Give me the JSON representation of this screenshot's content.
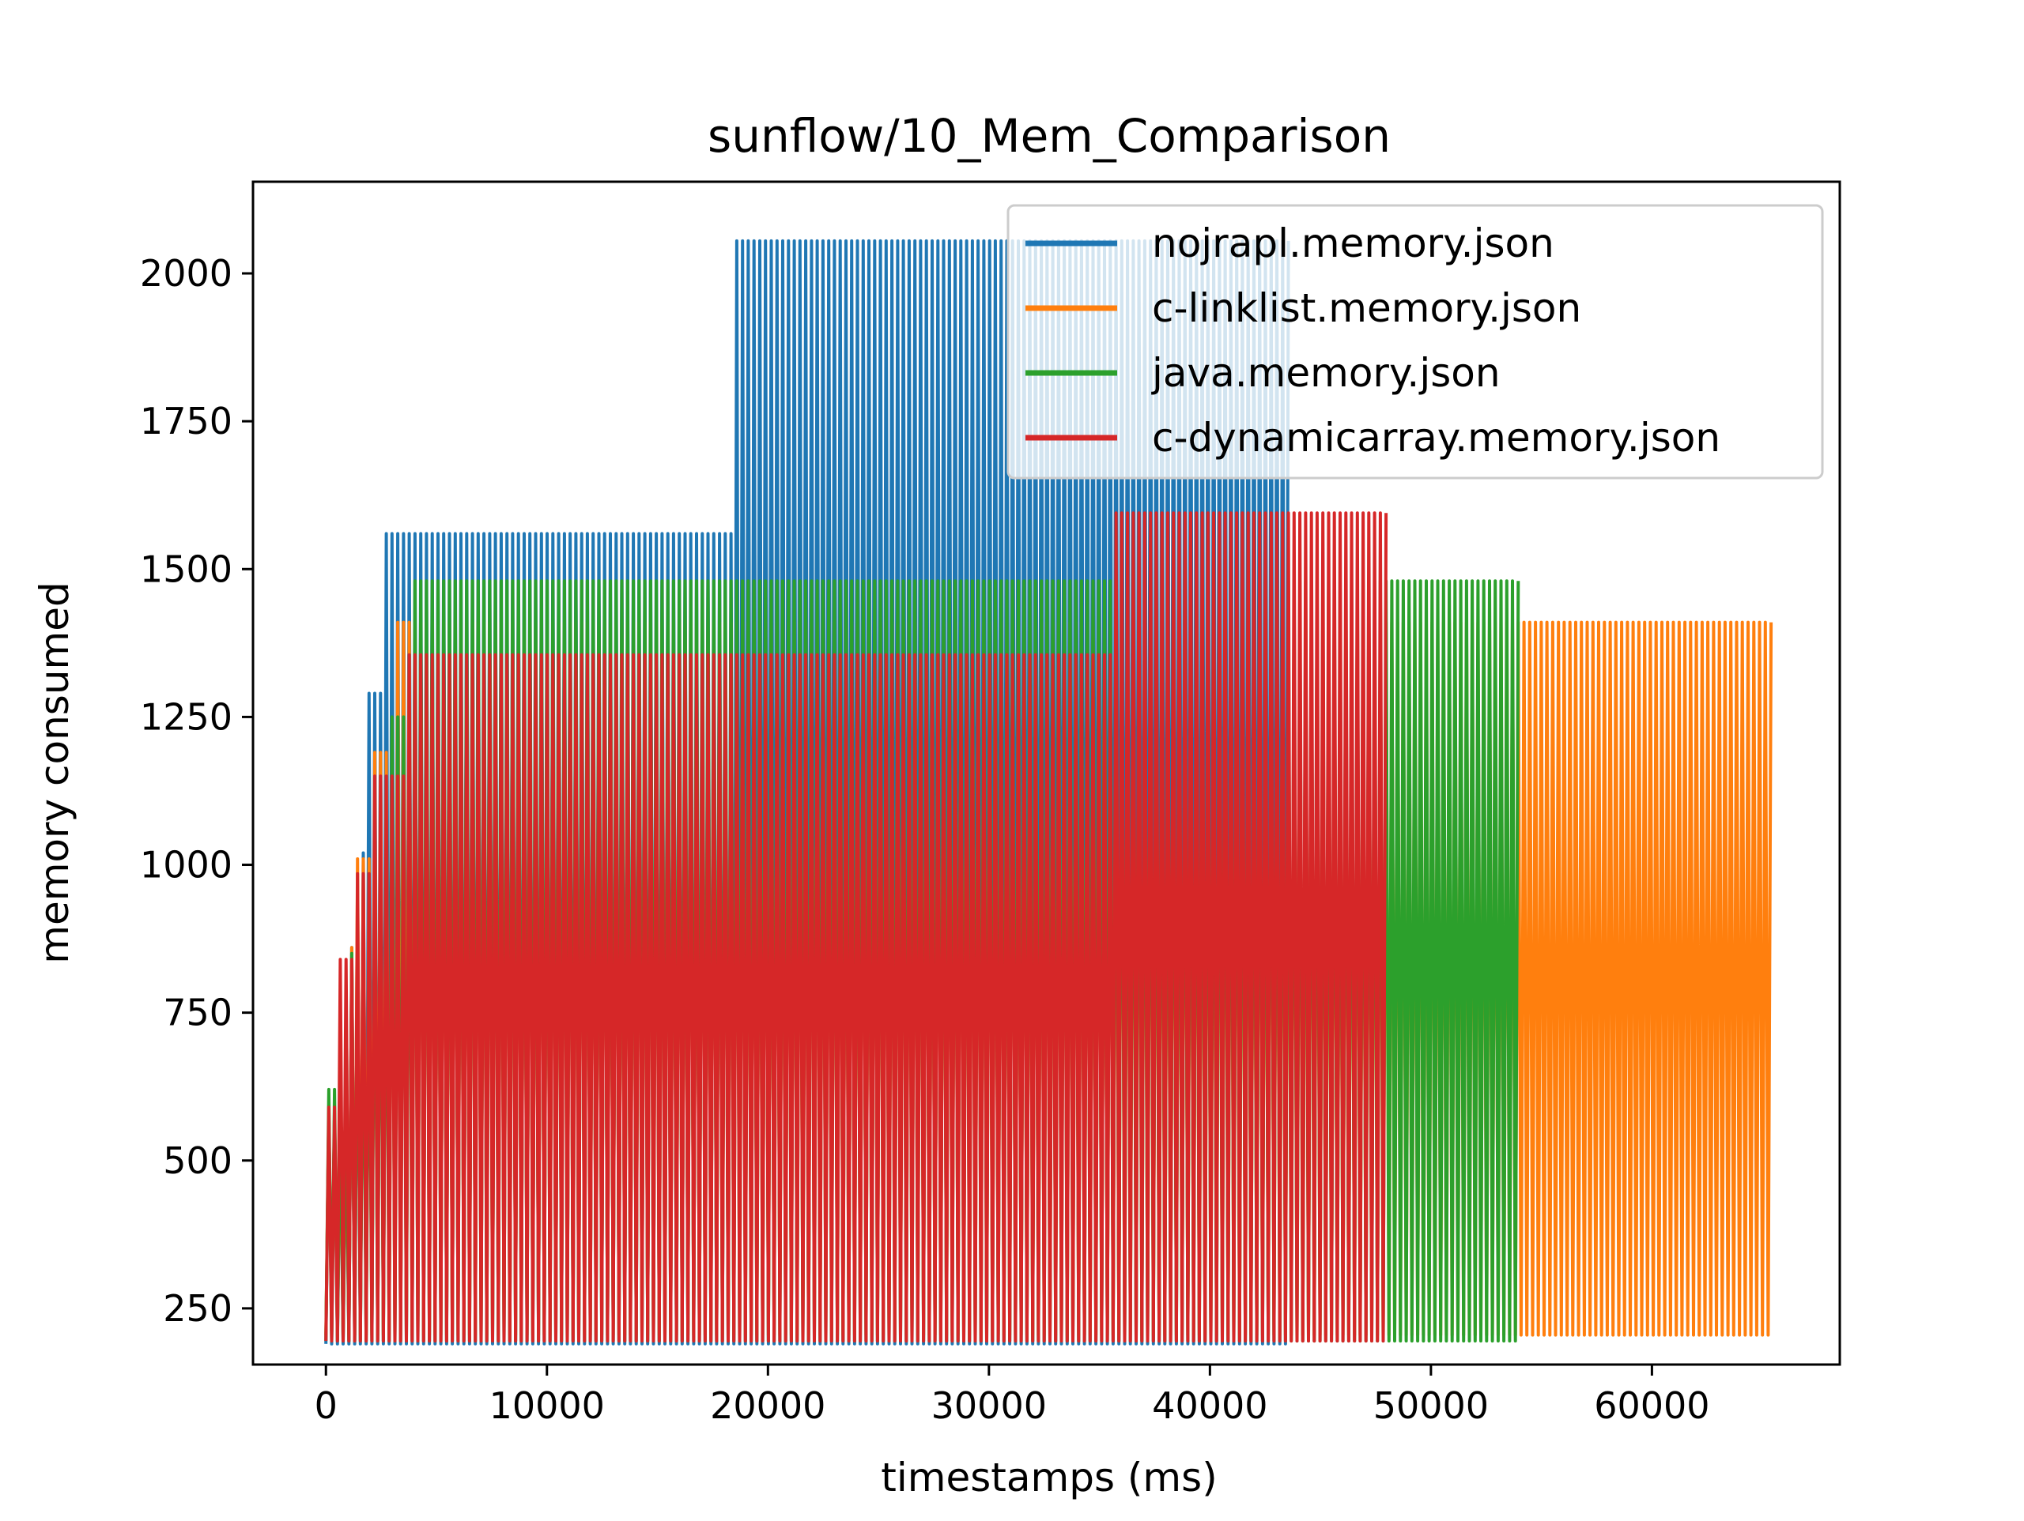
{
  "chart_data": {
    "type": "line",
    "title": "sunflow/10_Mem_Comparison",
    "xlabel": "timestamps (ms)",
    "ylabel": "memory consumed",
    "xlim": [
      -3300,
      68500
    ],
    "ylim": [
      155,
      2155
    ],
    "xticks": [
      0,
      10000,
      20000,
      30000,
      40000,
      50000,
      60000
    ],
    "yticks": [
      250,
      500,
      750,
      1000,
      1250,
      1500,
      1750,
      2000
    ],
    "grid": false,
    "legend_position": "top-right",
    "series": [
      {
        "name": "nojrapl.memory.json",
        "color": "#1f77b4",
        "end_x": 43600,
        "period_ms": 260,
        "troughs": 190,
        "peak_steps": [
          [
            0,
            580
          ],
          [
            1000,
            860
          ],
          [
            1400,
            1020
          ],
          [
            1600,
            1290
          ],
          [
            2400,
            1560
          ],
          [
            18300,
            2055
          ],
          [
            43600,
            2055
          ]
        ]
      },
      {
        "name": "c-linklist.memory.json",
        "color": "#ff7f0e",
        "end_x": 65300,
        "period_ms": 260,
        "troughs": 205,
        "peak_steps": [
          [
            0,
            580
          ],
          [
            800,
            860
          ],
          [
            1300,
            1010
          ],
          [
            2000,
            1190
          ],
          [
            3000,
            1410
          ],
          [
            65300,
            1410
          ]
        ]
      },
      {
        "name": "java.memory.json",
        "color": "#2ca02c",
        "end_x": 54000,
        "period_ms": 260,
        "troughs": 195,
        "peak_steps": [
          [
            0,
            620
          ],
          [
            1000,
            850
          ],
          [
            2000,
            1040
          ],
          [
            2800,
            1250
          ],
          [
            3800,
            1480
          ],
          [
            54000,
            1480
          ]
        ]
      },
      {
        "name": "c-dynamicarray.memory.json",
        "color": "#d62728",
        "end_x": 48000,
        "period_ms": 260,
        "troughs": 195,
        "peak_steps": [
          [
            0,
            590
          ],
          [
            500,
            840
          ],
          [
            1300,
            985
          ],
          [
            2000,
            1150
          ],
          [
            3400,
            1355
          ],
          [
            35600,
            1595
          ],
          [
            48000,
            1595
          ]
        ]
      }
    ]
  }
}
